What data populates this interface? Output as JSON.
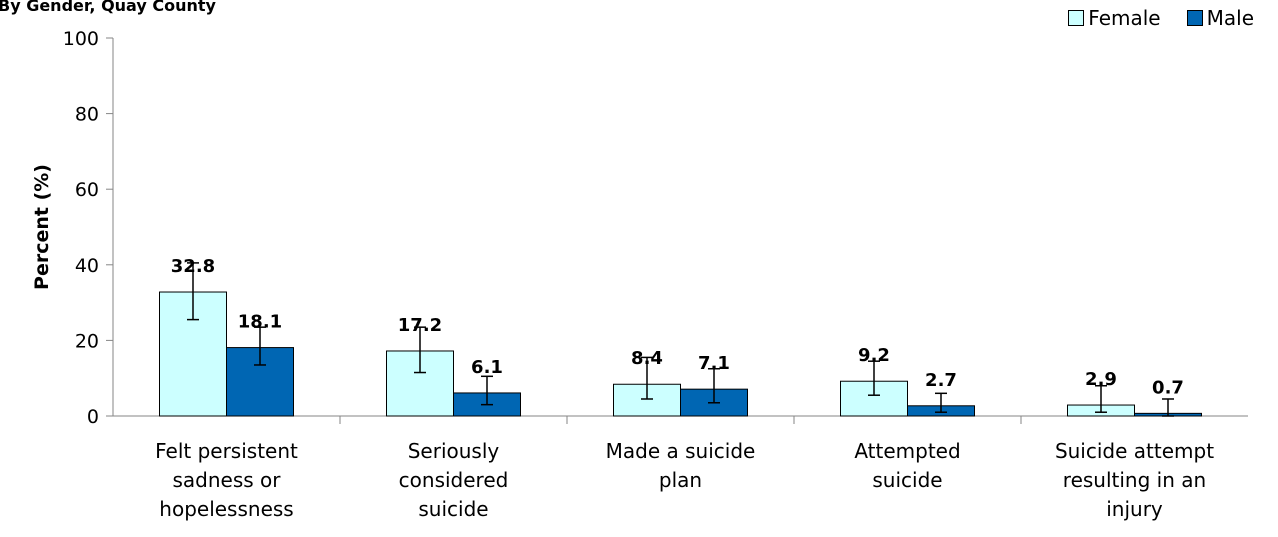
{
  "chart_data": {
    "type": "bar",
    "title": "By Gender, Quay County",
    "ylabel": "Percent (%)",
    "xlabel": "",
    "ylim": [
      0,
      100
    ],
    "yticks": [
      0,
      20,
      40,
      60,
      80,
      100
    ],
    "grid": false,
    "legend_position": "top-right",
    "categories": [
      [
        "Felt persistent",
        "sadness or",
        "hopelessness"
      ],
      [
        "Seriously",
        "considered",
        "suicide"
      ],
      [
        "Made a suicide",
        "plan"
      ],
      [
        "Attempted",
        "suicide"
      ],
      [
        "Suicide attempt",
        "resulting in an",
        "injury"
      ]
    ],
    "series": [
      {
        "name": "Female",
        "color": "#ccffff",
        "values": [
          32.8,
          17.2,
          8.4,
          9.2,
          2.9
        ],
        "labels": [
          "32.8",
          "17.2",
          "8.4",
          "9.2",
          "2.9"
        ],
        "error_low": [
          25.5,
          11.5,
          4.5,
          5.5,
          1.0
        ],
        "error_high": [
          40.5,
          23.5,
          15.5,
          14.5,
          8.0
        ]
      },
      {
        "name": "Male",
        "color": "#0066b3",
        "values": [
          18.1,
          6.1,
          7.1,
          2.7,
          0.7
        ],
        "labels": [
          "18.1",
          "6.1",
          "7.1",
          "2.7",
          "0.7"
        ],
        "error_low": [
          13.5,
          3.0,
          3.5,
          1.0,
          0.0
        ],
        "error_high": [
          23.5,
          10.5,
          12.5,
          6.0,
          4.5
        ]
      }
    ]
  }
}
